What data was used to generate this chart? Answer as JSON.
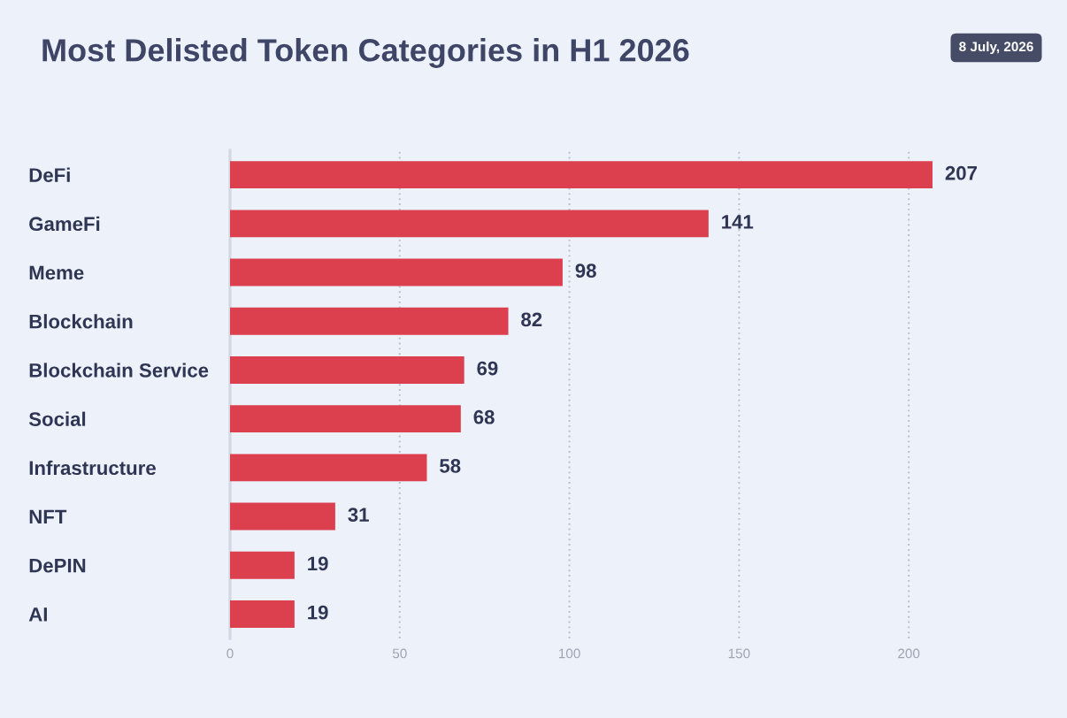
{
  "chart_data": {
    "type": "bar",
    "orientation": "horizontal",
    "title": "Most Delisted Token Categories in H1 2026",
    "annotations": [
      "8 July, 2026"
    ],
    "categories": [
      "DeFi",
      "GameFi",
      "Meme",
      "Blockchain",
      "Blockchain Service",
      "Social",
      "Infrastructure",
      "NFT",
      "DePIN",
      "AI"
    ],
    "values": [
      207,
      141,
      98,
      82,
      69,
      68,
      58,
      31,
      19,
      19
    ],
    "color": "#dc3f4d",
    "xlim": [
      0,
      207
    ],
    "xticks": [
      0,
      50,
      100,
      150,
      200
    ],
    "grid": "x",
    "data_labels": true
  }
}
